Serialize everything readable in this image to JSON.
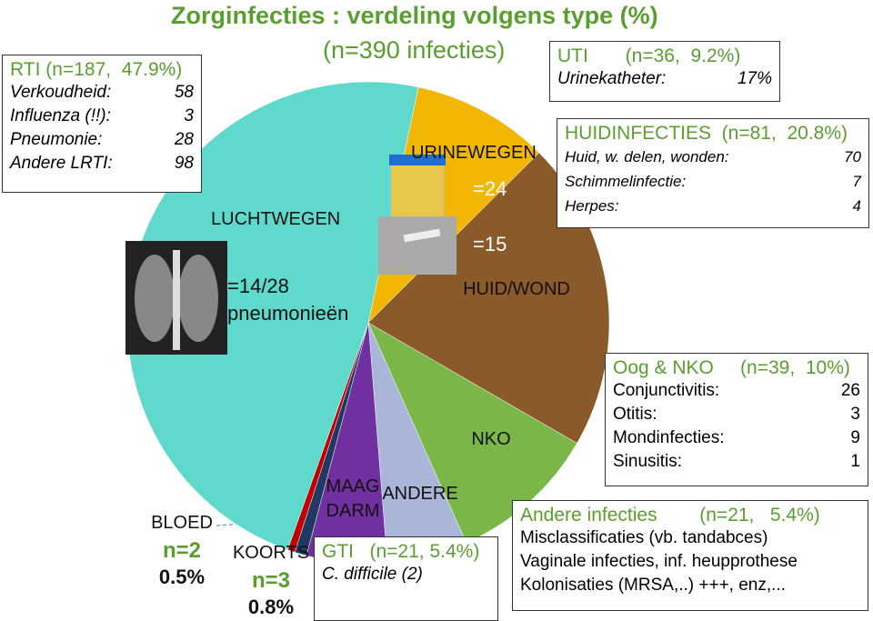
{
  "chart_data": {
    "type": "pie",
    "title": "Zorginfecties : verdeling volgens type (%)",
    "subtitle": "(n=390 infecties)",
    "categories": [
      "URINEWEGEN",
      "HUID/WOND",
      "NKO",
      "ANDERE",
      "MAAG DARM",
      "KOORTS",
      "BLOED",
      "LUCHTWEGEN"
    ],
    "values": [
      9.2,
      20.8,
      10,
      5.4,
      5.4,
      0.8,
      0.5,
      47.9
    ],
    "value_labels": [
      null,
      null,
      null,
      null,
      null,
      "0.8%",
      "0.5%",
      null
    ],
    "colors": [
      "#f2b705",
      "#8b5a2b",
      "#7ab648",
      "#a9b6d8",
      "#7030a0",
      "#1f3864",
      "#c00000",
      "#5fd9cc"
    ],
    "annotations": [
      "=24",
      "=15",
      "=14/28 pneumonieën",
      "n=3",
      "n=2"
    ]
  },
  "panels": [
    {
      "title": "RTI (n=187,  47.9%)",
      "rows": [
        [
          "Verkoudheid:",
          58
        ],
        [
          "Influenza (!!):",
          3
        ],
        [
          "Pneumonie:",
          28
        ],
        [
          "Andere LRTI:",
          98
        ]
      ]
    },
    {
      "title": "UTI       (n=36,  9.2%)",
      "rows": [
        [
          "Urinekatheter:",
          "17%"
        ]
      ]
    },
    {
      "title": "HUIDINFECTIES  (n=81,  20.8%)",
      "rows": [
        [
          "Huid, w. delen, wonden:",
          70
        ],
        [
          "Schimmelinfectie:",
          7
        ],
        [
          "Herpes:",
          4
        ]
      ]
    },
    {
      "title": "Oog & NKO     (n=39,  10%)",
      "rows": [
        [
          "Conjunctivitis:",
          26
        ],
        [
          "Otitis:",
          3
        ],
        [
          "Mondinfecties:",
          9
        ],
        [
          "Sinusitis:",
          1
        ]
      ]
    },
    {
      "title": "Andere infecties        (n=21,   5.4%)",
      "rows": [
        [
          "Misclassificaties (vb. tandabces)"
        ],
        [
          "Vaginale infecties, inf. heupprothese"
        ],
        [
          "Kolonisaties (MRSA,..) +++,  enz,..."
        ]
      ]
    },
    {
      "title": "GTI   (n=21, 5.4%)",
      "rows": [
        [
          "C. difficile (2)"
        ]
      ]
    }
  ]
}
